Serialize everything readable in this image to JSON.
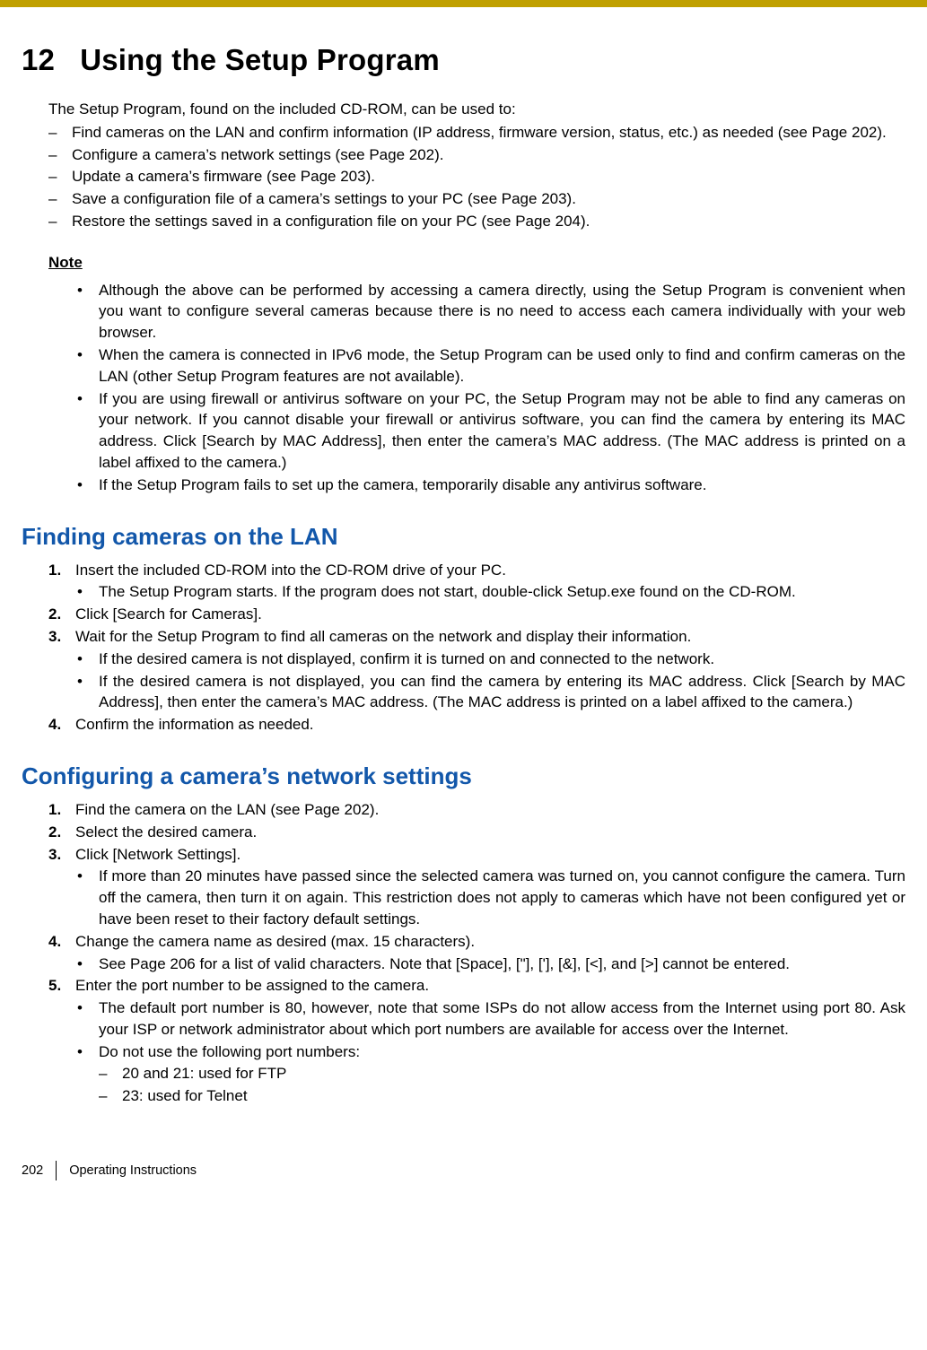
{
  "chapter": {
    "num": "12",
    "title": "Using the Setup Program"
  },
  "intro_lead": "The Setup Program, found on the included CD-ROM, can be used to:",
  "intro_items": [
    "Find cameras on the LAN and confirm information (IP address, firmware version, status, etc.) as needed (see Page 202).",
    "Configure a camera’s network settings (see Page 202).",
    "Update a camera’s firmware (see Page 203).",
    "Save a configuration file of a camera’s settings to your PC (see Page 203).",
    "Restore the settings saved in a configuration file on your PC (see Page 204)."
  ],
  "note_label": "Note",
  "note_items": [
    "Although the above can be performed by accessing a camera directly, using the Setup Program is convenient when you want to configure several cameras because there is no need to access each camera individually with your web browser.",
    "When the camera is connected in IPv6 mode, the Setup Program can be used only to find and confirm cameras on the LAN (other Setup Program features are not available).",
    "If you are using firewall or antivirus software on your PC, the Setup Program may not be able to find any cameras on your network. If you cannot disable your firewall or antivirus software, you can find the camera by entering its MAC address. Click [Search by MAC Address], then enter the camera’s MAC address. (The MAC address is printed on a label affixed to the camera.)",
    "If the Setup Program fails to set up the camera, temporarily disable any antivirus software."
  ],
  "sect1": {
    "title": "Finding cameras on the LAN",
    "steps": [
      {
        "n": "1.",
        "t": "Insert the included CD-ROM into the CD-ROM drive of your PC.",
        "bullets": [
          "The Setup Program starts. If the program does not start, double-click Setup.exe found on the CD-ROM."
        ]
      },
      {
        "n": "2.",
        "t": "Click [Search for Cameras]."
      },
      {
        "n": "3.",
        "t": "Wait for the Setup Program to find all cameras on the network and display their information.",
        "bullets": [
          "If the desired camera is not displayed, confirm it is turned on and connected to the network.",
          "If the desired camera is not displayed, you can find the camera by entering its MAC address. Click [Search by MAC Address], then enter the camera’s MAC address. (The MAC address is printed on a label affixed to the camera.)"
        ]
      },
      {
        "n": "4.",
        "t": "Confirm the information as needed."
      }
    ]
  },
  "sect2": {
    "title": "Configuring a camera’s network settings",
    "steps": [
      {
        "n": "1.",
        "t": "Find the camera on the LAN (see Page 202)."
      },
      {
        "n": "2.",
        "t": "Select the desired camera."
      },
      {
        "n": "3.",
        "t": "Click [Network Settings].",
        "bullets": [
          "If more than 20 minutes have passed since the selected camera was turned on, you cannot configure the camera. Turn off the camera, then turn it on again. This restriction does not apply to cameras which have not been configured yet or have been reset to their factory default settings."
        ]
      },
      {
        "n": "4.",
        "t": "Change the camera name as desired (max. 15 characters).",
        "bullets": [
          "See Page 206 for a list of valid characters. Note that [Space], [\"], ['], [&], [<], and [>] cannot be entered."
        ]
      },
      {
        "n": "5.",
        "t": "Enter the port number to be assigned to the camera.",
        "bullets": [
          "The default port number is 80, however, note that some ISPs do not allow access from the Internet using port 80. Ask your ISP or network administrator about which port numbers are available for access over the Internet.",
          "Do not use the following port numbers:"
        ],
        "subdash": [
          "20 and 21: used for FTP",
          "23: used for Telnet"
        ]
      }
    ]
  },
  "footer": {
    "page": "202",
    "doc": "Operating Instructions"
  },
  "colors": {
    "topbar": "#c0a000",
    "heading_blue": "#1257aa",
    "text": "#000000",
    "bg": "#ffffff"
  }
}
